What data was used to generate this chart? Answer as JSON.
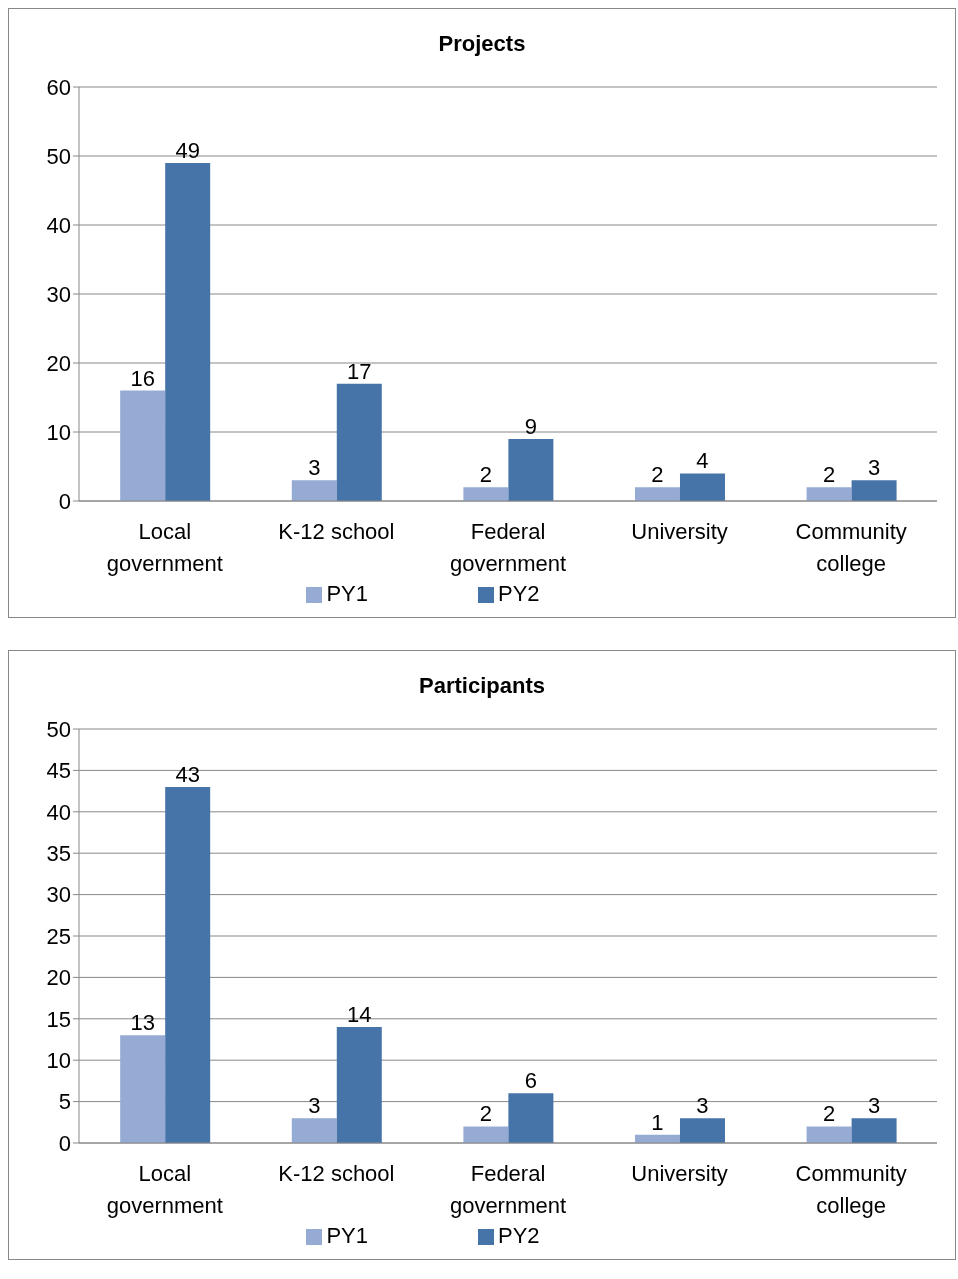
{
  "chart_data": [
    {
      "type": "bar",
      "title": "Projects",
      "categories": [
        "Local government",
        "K-12 school",
        "Federal government",
        "University",
        "Community college"
      ],
      "series": [
        {
          "name": "PY1",
          "color": "#95abd4",
          "values": [
            16,
            3,
            2,
            2,
            2
          ]
        },
        {
          "name": "PY2",
          "color": "#4674a9",
          "values": [
            49,
            17,
            9,
            4,
            3
          ]
        }
      ],
      "ylim": [
        0,
        60
      ],
      "yticks": [
        0,
        10,
        20,
        30,
        40,
        50,
        60
      ],
      "grid": "y",
      "legend": "bottom",
      "data_labels": true
    },
    {
      "type": "bar",
      "title": "Participants",
      "categories": [
        "Local government",
        "K-12 school",
        "Federal government",
        "University",
        "Community college"
      ],
      "series": [
        {
          "name": "PY1",
          "color": "#95abd4",
          "values": [
            13,
            3,
            2,
            1,
            2
          ]
        },
        {
          "name": "PY2",
          "color": "#4674a9",
          "values": [
            43,
            14,
            6,
            3,
            3
          ]
        }
      ],
      "ylim": [
        0,
        50
      ],
      "yticks": [
        0,
        5,
        10,
        15,
        20,
        25,
        30,
        35,
        40,
        45,
        50
      ],
      "grid": "y",
      "legend": "bottom",
      "data_labels": true
    }
  ]
}
